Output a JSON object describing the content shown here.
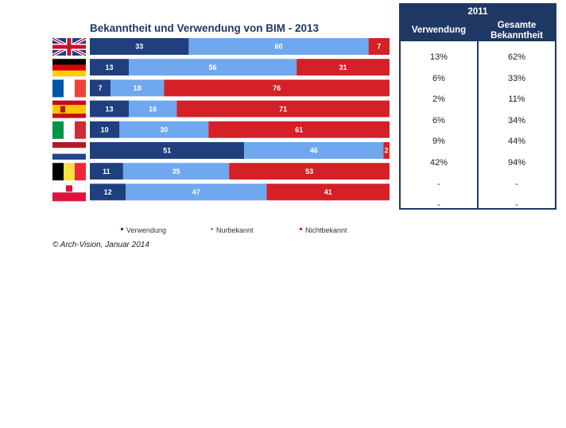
{
  "chart_data": {
    "type": "bar",
    "stacked": true,
    "orientation": "horizontal",
    "title": "Bekanntheit und Verwendung von BIM - 2013",
    "categories": [
      "uk",
      "de",
      "fr",
      "es",
      "it",
      "nl",
      "be",
      "pl"
    ],
    "series": [
      {
        "name": "Verwendung",
        "color": "#1f3f7f",
        "values": [
          33,
          13,
          7,
          13,
          10,
          51,
          11,
          12
        ]
      },
      {
        "name": "Nurbekannt",
        "color": "#6fa8ee",
        "values": [
          60,
          56,
          18,
          16,
          30,
          46,
          35,
          47
        ]
      },
      {
        "name": "Nichtbekannt",
        "color": "#d42026",
        "values": [
          7,
          31,
          76,
          71,
          61,
          2,
          53,
          41
        ]
      }
    ],
    "legend_position": "bottom"
  },
  "copyright": "© Arch-Vision, Januar 2014",
  "table": {
    "year": "2011",
    "col1_header": "Verwendung",
    "col2_header": "Gesamte Bekanntheit",
    "rows": [
      [
        "13%",
        "62%"
      ],
      [
        "6%",
        "33%"
      ],
      [
        "2%",
        "11%"
      ],
      [
        "6%",
        "34%"
      ],
      [
        "9%",
        "44%"
      ],
      [
        "42%",
        "94%"
      ],
      [
        "-",
        "-"
      ],
      [
        "-",
        "-"
      ]
    ]
  },
  "colors": {
    "navy": "#1f3864"
  }
}
